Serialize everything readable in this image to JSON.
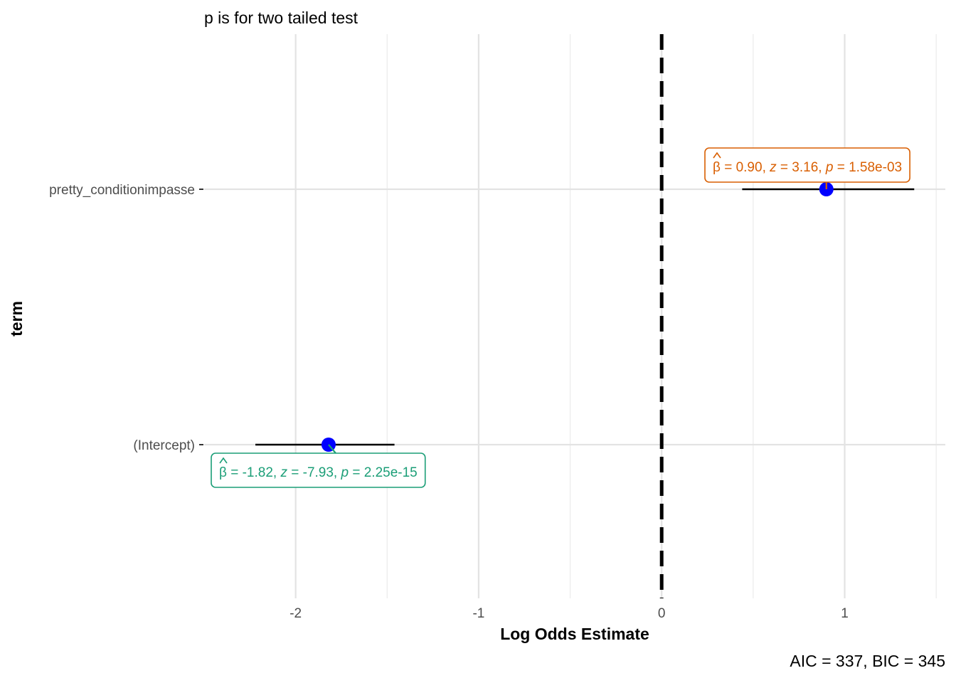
{
  "chart_data": {
    "type": "forest",
    "subtitle": "p is for two tailed test",
    "xlabel": "Log Odds Estimate",
    "ylabel": "term",
    "caption": "AIC = 337, BIC = 345",
    "xlim": [
      -2.5,
      1.55
    ],
    "x_ticks": [
      -2,
      -1,
      0,
      1
    ],
    "x_tick_labels": [
      "-2",
      "-1",
      "0",
      "1"
    ],
    "reference_line": 0,
    "grid": true,
    "point_color": "#0000ff",
    "terms": [
      {
        "term": "pretty_conditionimpasse",
        "estimate": 0.9,
        "ci_low": 0.44,
        "ci_high": 1.38,
        "label_beta": " = 0.90, ",
        "label_z": " = 3.16, ",
        "label_p": " = 1.58e-03",
        "label_color": "#d95f02",
        "label_placement": "above"
      },
      {
        "term": "(Intercept)",
        "estimate": -1.82,
        "ci_low": -2.22,
        "ci_high": -1.46,
        "label_beta": " = -1.82, ",
        "label_z": " = -7.93, ",
        "label_p": " = 2.25e-15",
        "label_color": "#1b9e77",
        "label_placement": "below"
      }
    ]
  }
}
